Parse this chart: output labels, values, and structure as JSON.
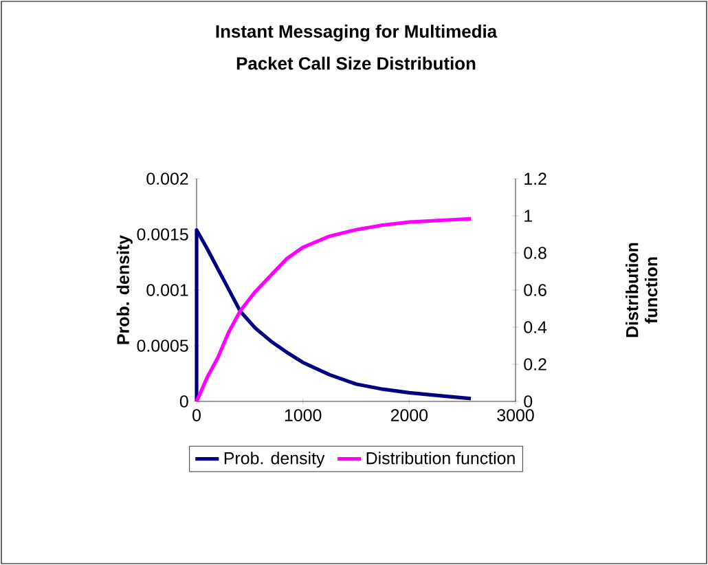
{
  "chart_data": {
    "type": "line",
    "title": "Instant Messaging for Multimedia",
    "subtitle": "Packet Call Size Distribution",
    "ylabel": "Prob. density",
    "y2label": "Distribution function",
    "xlim": [
      0,
      3000
    ],
    "xticks": [
      0,
      1000,
      2000,
      3000
    ],
    "ylim": [
      0,
      0.002
    ],
    "yticks": [
      0,
      0.0005,
      0.001,
      0.0015,
      0.002
    ],
    "y2lim": [
      0,
      1.2
    ],
    "y2ticks": [
      0,
      0.2,
      0.4,
      0.6,
      0.8,
      1,
      1.2
    ],
    "legend": "bottom",
    "marker": "none",
    "line_style": "solid",
    "series": [
      {
        "name": "Prob. density",
        "color": "#000080",
        "x": [
          0,
          0,
          100,
          200,
          300,
          410,
          550,
          700,
          850,
          1000,
          1250,
          1500,
          1750,
          2000,
          2300,
          2580
        ],
        "values": [
          0,
          0.00154,
          0.00137,
          0.00119,
          0.00101,
          0.00081,
          0.00066,
          0.00054,
          0.00044,
          0.00035,
          0.00024,
          0.000156,
          0.00011,
          7.8e-05,
          5e-05,
          2.5e-05
        ]
      },
      {
        "name": "Distribution function",
        "color": "#ff00ff",
        "axis": "y2",
        "x": [
          0,
          100,
          200,
          300,
          410,
          550,
          700,
          850,
          1000,
          1250,
          1500,
          1750,
          2000,
          2300,
          2580
        ],
        "values": [
          0,
          0.13,
          0.236,
          0.37,
          0.487,
          0.59,
          0.68,
          0.77,
          0.83,
          0.89,
          0.925,
          0.95,
          0.966,
          0.976,
          0.984
        ]
      }
    ]
  }
}
